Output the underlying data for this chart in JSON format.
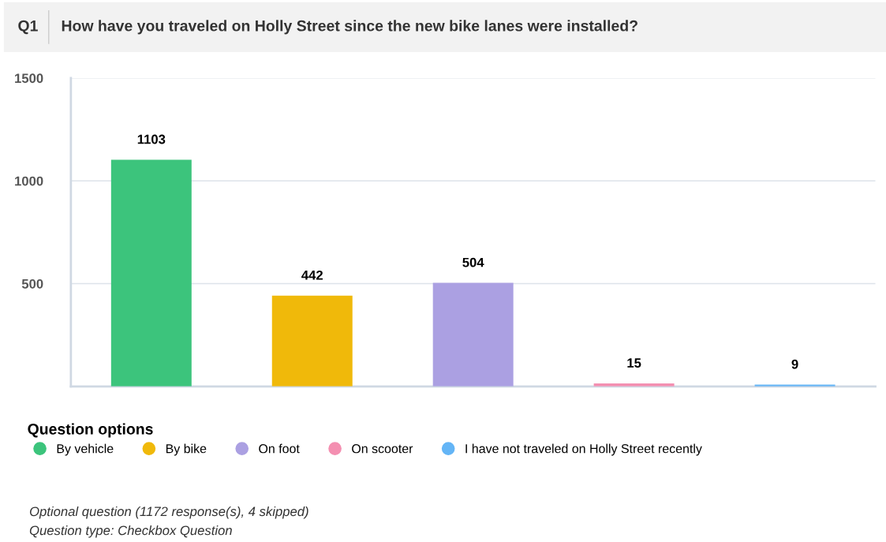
{
  "chart_data": {
    "type": "bar",
    "title": "Q1",
    "subtitle": "How have you traveled on Holly Street since the new bike lanes were installed?",
    "categories": [
      null,
      null,
      null,
      null,
      null
    ],
    "series": [
      {
        "name": "By vehicle",
        "color": "#3cc47c",
        "values": [
          1103,
          null,
          null,
          null,
          null
        ]
      },
      {
        "name": "By bike",
        "color": "#f0b90a",
        "values": [
          null,
          442,
          null,
          null,
          null
        ]
      },
      {
        "name": "On foot",
        "color": "#aba0e2",
        "values": [
          null,
          null,
          504,
          null,
          null
        ]
      },
      {
        "name": "On scooter",
        "color": "#f48fb1",
        "values": [
          null,
          null,
          null,
          15,
          null
        ]
      },
      {
        "name": "I have not traveled on Holly Street recently",
        "color": "#64b5f6",
        "values": [
          null,
          null,
          null,
          null,
          9
        ]
      }
    ],
    "ylim": [
      0,
      1500
    ],
    "yticks": [
      500,
      1000,
      1500
    ],
    "grid": "y",
    "data_labels": true,
    "tick_labels": "y",
    "legend": "bottom left",
    "legend_title": "Question options",
    "annotations": [
      "Optional question (1172 response(s), 4 skipped)",
      "Question type: Checkbox Question"
    ]
  }
}
